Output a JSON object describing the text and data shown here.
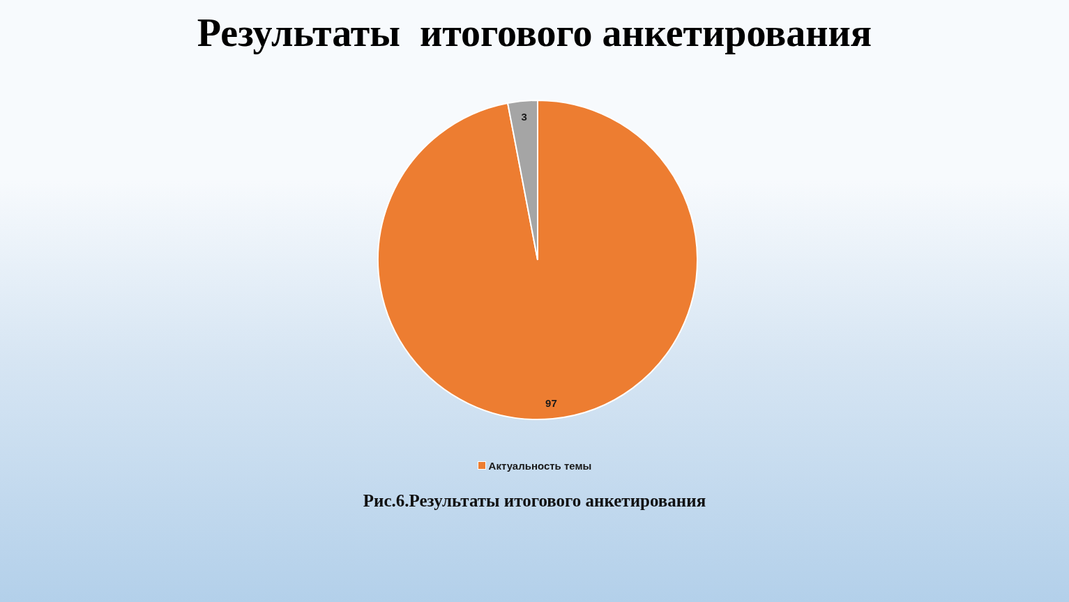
{
  "chart_data": {
    "type": "pie",
    "title": "Результаты  итогового анкетирования",
    "categories": [
      "Актуальность темы",
      null
    ],
    "values": [
      97,
      3
    ],
    "colors": [
      "#ed7d31",
      "#a5a5a5"
    ],
    "data_labels": true,
    "legend": "bottom",
    "annotations": [
      "Рис.6.Результаты итогового анкетирования"
    ]
  }
}
